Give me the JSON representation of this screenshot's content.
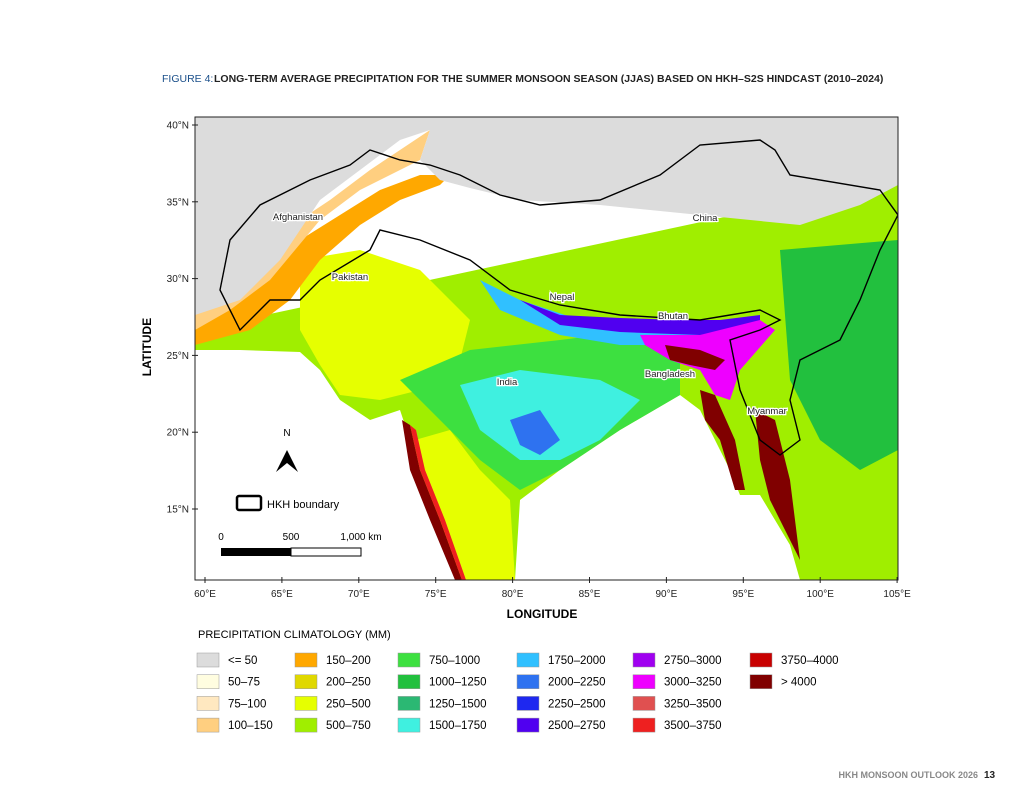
{
  "figure": {
    "label": "FIGURE 4:",
    "title": "LONG-TERM AVERAGE PRECIPITATION FOR THE SUMMER MONSOON SEASON (JJAS) BASED ON HKH–S2S HINDCAST (2010–2024)"
  },
  "map": {
    "y_axis_label": "LATITUDE",
    "x_axis_label": "LONGITUDE",
    "lat_ticks": [
      "40°N",
      "35°N",
      "30°N",
      "25°N",
      "20°N",
      "15°N"
    ],
    "lon_ticks": [
      "60°E",
      "65°E",
      "70°E",
      "75°E",
      "80°E",
      "85°E",
      "90°E",
      "95°E",
      "100°E",
      "105°E"
    ],
    "places": [
      "Afghanistan",
      "Pakistan",
      "China",
      "Nepal",
      "Bhutan",
      "India",
      "Bangladesh",
      "Myanmar"
    ],
    "north": "N",
    "boundary_legend": "HKH boundary",
    "scale_labels": [
      "0",
      "500",
      "1,000 km"
    ]
  },
  "legend": {
    "title": "PRECIPITATION CLIMATOLOGY (MM)",
    "items": [
      {
        "label": "<= 50",
        "color": "#dcdcdc"
      },
      {
        "label": "50–75",
        "color": "#fffde0"
      },
      {
        "label": "75–100",
        "color": "#ffe8c0"
      },
      {
        "label": "100–150",
        "color": "#ffcf80"
      },
      {
        "label": "150–200",
        "color": "#ffa800"
      },
      {
        "label": "200–250",
        "color": "#e0d800"
      },
      {
        "label": "250–500",
        "color": "#e6ff00"
      },
      {
        "label": "500–750",
        "color": "#a0ee00"
      },
      {
        "label": "750–1000",
        "color": "#3de040"
      },
      {
        "label": "1000–1250",
        "color": "#22c03e"
      },
      {
        "label": "1250–1500",
        "color": "#2bb873"
      },
      {
        "label": "1500–1750",
        "color": "#3ff0e0"
      },
      {
        "label": "1750–2000",
        "color": "#30c0ff"
      },
      {
        "label": "2000–2250",
        "color": "#2e72f0"
      },
      {
        "label": "2250–2500",
        "color": "#1e28f0"
      },
      {
        "label": "2500–2750",
        "color": "#5000f0"
      },
      {
        "label": "2750–3000",
        "color": "#a000f0"
      },
      {
        "label": "3000–3250",
        "color": "#ee00ff"
      },
      {
        "label": "3250–3500",
        "color": "#e05050"
      },
      {
        "label": "3500–3750",
        "color": "#ee2020"
      },
      {
        "label": "3750–4000",
        "color": "#c80000"
      },
      {
        "label": "> 4000",
        "color": "#800000"
      }
    ]
  },
  "footer": {
    "text": "HKH MONSOON OUTLOOK 2026",
    "page": "13"
  }
}
